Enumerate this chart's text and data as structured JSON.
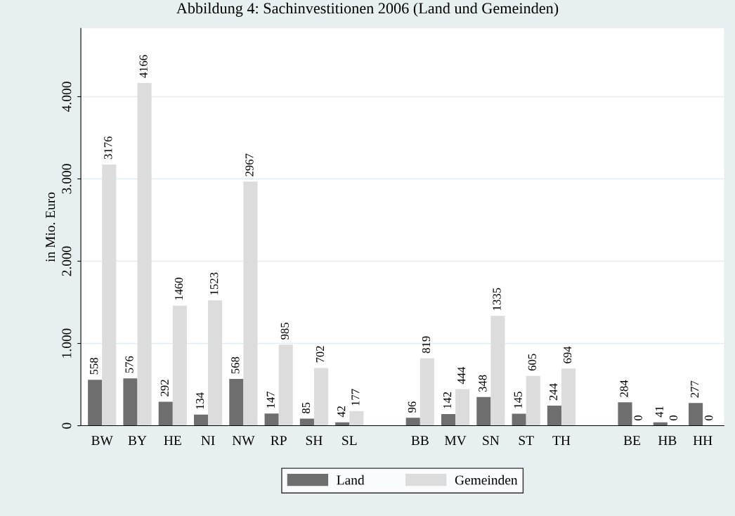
{
  "chart_data": {
    "type": "bar",
    "title": "Abbildung 4: Sachinvestitionen 2006 (Land und Gemeinden)",
    "ylabel": "in Mio. Euro",
    "categories": [
      "BW",
      "BY",
      "HE",
      "NI",
      "NW",
      "RP",
      "SH",
      "SL",
      null,
      "BB",
      "MV",
      "SN",
      "ST",
      "TH",
      null,
      "BE",
      "HB",
      "HH"
    ],
    "series": [
      {
        "name": "Land",
        "color": "#6e6e6e",
        "values": [
          558,
          576,
          292,
          134,
          568,
          147,
          85,
          42,
          null,
          96,
          142,
          348,
          145,
          244,
          null,
          284,
          41,
          277
        ]
      },
      {
        "name": "Gemeinden",
        "color": "#dcdcdc",
        "values": [
          3176,
          4166,
          1460,
          1523,
          2967,
          985,
          702,
          177,
          null,
          819,
          444,
          1335,
          605,
          694,
          null,
          0,
          0,
          0
        ]
      }
    ],
    "ylim": [
      0,
      4830
    ],
    "yticks": [
      0,
      {
        "value": 1000,
        "label": "1.000"
      },
      {
        "value": 2000,
        "label": "2.000"
      },
      {
        "value": 3000,
        "label": "3.000"
      },
      {
        "value": 4000,
        "label": "4.000"
      }
    ],
    "grid": "y",
    "legend": "bottom",
    "data_labels": true
  }
}
